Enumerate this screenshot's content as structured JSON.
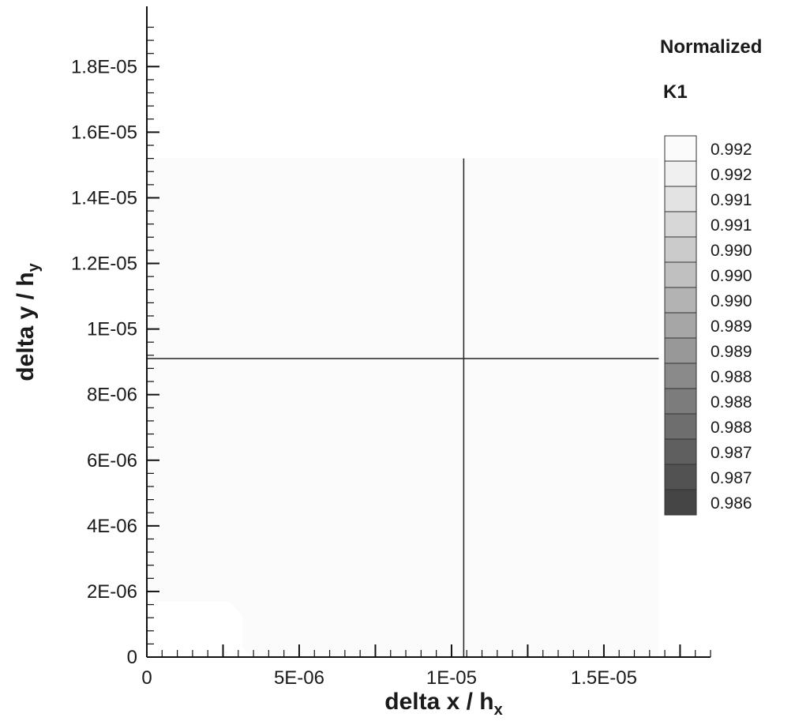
{
  "chart_data": {
    "type": "heatmap",
    "title": "",
    "xlabel_main": "delta x / h",
    "xlabel_sub": "x",
    "ylabel_main": "delta y / h",
    "ylabel_sub": "y",
    "xlim": [
      0,
      1.85e-05
    ],
    "ylim": [
      0,
      1.95e-05
    ],
    "x_ticks": [
      {
        "value": 0,
        "label": "0"
      },
      {
        "value": 5e-06,
        "label": "5E-06"
      },
      {
        "value": 1e-05,
        "label": "1E-05"
      },
      {
        "value": 1.5e-05,
        "label": "1.5E-05"
      }
    ],
    "y_ticks": [
      {
        "value": 0,
        "label": "0"
      },
      {
        "value": 2e-06,
        "label": "2E-06"
      },
      {
        "value": 4e-06,
        "label": "4E-06"
      },
      {
        "value": 6e-06,
        "label": "6E-06"
      },
      {
        "value": 8e-06,
        "label": "8E-06"
      },
      {
        "value": 1e-05,
        "label": "1E-05"
      },
      {
        "value": 1.2e-05,
        "label": "1.2E-05"
      },
      {
        "value": 1.4e-05,
        "label": "1.4E-05"
      },
      {
        "value": 1.6e-05,
        "label": "1.6E-05"
      },
      {
        "value": 1.8e-05,
        "label": "1.8E-05"
      }
    ],
    "field_extent": {
      "x": [
        0,
        1.68e-05
      ],
      "y": [
        0,
        1.52e-05
      ]
    },
    "peak": {
      "x": 1.04e-05,
      "y": 9.1e-06
    },
    "crosshair": {
      "x": 1.04e-05,
      "y": 9.1e-06
    },
    "legend": {
      "title_line1": "Normalized",
      "title_line2": "K1",
      "levels": [
        {
          "label": "0.992",
          "color": "#fbfbfb"
        },
        {
          "label": "0.992",
          "color": "#f0f0f0"
        },
        {
          "label": "0.991",
          "color": "#e3e3e3"
        },
        {
          "label": "0.991",
          "color": "#d7d7d7"
        },
        {
          "label": "0.990",
          "color": "#cbcbcb"
        },
        {
          "label": "0.990",
          "color": "#c0c0c0"
        },
        {
          "label": "0.990",
          "color": "#b3b3b3"
        },
        {
          "label": "0.989",
          "color": "#a6a6a6"
        },
        {
          "label": "0.989",
          "color": "#989898"
        },
        {
          "label": "0.988",
          "color": "#8a8a8a"
        },
        {
          "label": "0.988",
          "color": "#7c7c7c"
        },
        {
          "label": "0.988",
          "color": "#6e6e6e"
        },
        {
          "label": "0.987",
          "color": "#5f5f5f"
        },
        {
          "label": "0.987",
          "color": "#525252"
        },
        {
          "label": "0.986",
          "color": "#454545"
        }
      ]
    }
  }
}
